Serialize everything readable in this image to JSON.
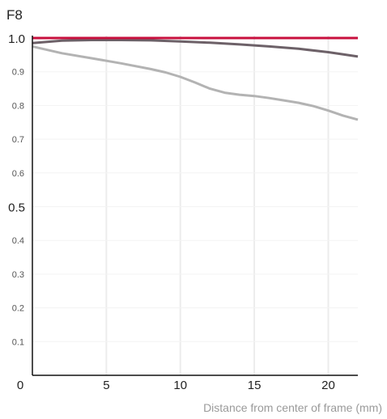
{
  "chart_data": {
    "type": "line",
    "title": "F8",
    "xlabel": "Distance from center of frame (mm)",
    "ylabel": "",
    "xlim": [
      0,
      22
    ],
    "ylim": [
      0,
      1.0
    ],
    "x_ticks": [
      "0",
      "5",
      "10",
      "15",
      "20"
    ],
    "x_tick_values": [
      0,
      5,
      10,
      15,
      20
    ],
    "y_ticks": [
      "0.1",
      "0.2",
      "0.3",
      "0.4",
      "0.5",
      "0.6",
      "0.7",
      "0.8",
      "0.9",
      "1.0"
    ],
    "y_tick_values": [
      0.1,
      0.2,
      0.3,
      0.4,
      0.5,
      0.6,
      0.7,
      0.8,
      0.9,
      1.0
    ],
    "major_y_ticks": [
      "0.5",
      "1.0"
    ],
    "grid": "vertical",
    "series": [
      {
        "color": "#c8103e",
        "x": [
          0,
          22
        ],
        "y": [
          1.0,
          1.0
        ]
      },
      {
        "color": "#6d6168",
        "x": [
          0,
          2,
          4,
          6,
          8,
          10,
          12,
          14,
          16,
          18,
          20,
          22
        ],
        "y": [
          0.985,
          0.992,
          0.994,
          0.994,
          0.993,
          0.99,
          0.986,
          0.981,
          0.975,
          0.968,
          0.958,
          0.945
        ]
      },
      {
        "color": "#b3b3b3",
        "x": [
          0,
          2,
          4,
          6,
          8,
          9,
          10,
          11,
          12,
          13,
          14,
          15,
          16,
          17,
          18,
          19,
          20,
          21,
          22
        ],
        "y": [
          0.975,
          0.955,
          0.94,
          0.925,
          0.908,
          0.898,
          0.885,
          0.868,
          0.85,
          0.838,
          0.832,
          0.828,
          0.822,
          0.815,
          0.808,
          0.798,
          0.785,
          0.77,
          0.758
        ]
      }
    ]
  }
}
